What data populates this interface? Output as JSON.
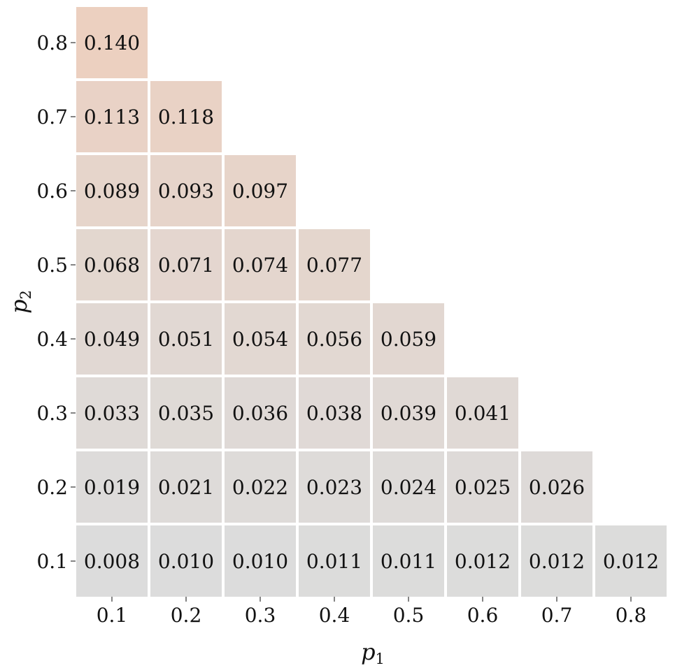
{
  "chart_data": {
    "type": "heatmap",
    "title": "",
    "xlabel": "p",
    "xlabel_subscript": "1",
    "ylabel": "p",
    "ylabel_subscript": "2",
    "x_categories": [
      "0.1",
      "0.2",
      "0.3",
      "0.4",
      "0.5",
      "0.6",
      "0.7",
      "0.8"
    ],
    "y_categories": [
      "0.1",
      "0.2",
      "0.3",
      "0.4",
      "0.5",
      "0.6",
      "0.7",
      "0.8"
    ],
    "rows": [
      {
        "y": "0.8",
        "values": [
          0.14
        ]
      },
      {
        "y": "0.7",
        "values": [
          0.113,
          0.118
        ]
      },
      {
        "y": "0.6",
        "values": [
          0.089,
          0.093,
          0.097
        ]
      },
      {
        "y": "0.5",
        "values": [
          0.068,
          0.071,
          0.074,
          0.077
        ]
      },
      {
        "y": "0.4",
        "values": [
          0.049,
          0.051,
          0.054,
          0.056,
          0.059
        ]
      },
      {
        "y": "0.3",
        "values": [
          0.033,
          0.035,
          0.036,
          0.038,
          0.039,
          0.041
        ]
      },
      {
        "y": "0.2",
        "values": [
          0.019,
          0.021,
          0.022,
          0.023,
          0.024,
          0.025,
          0.026
        ]
      },
      {
        "y": "0.1",
        "values": [
          0.008,
          0.01,
          0.01,
          0.011,
          0.011,
          0.012,
          0.012,
          0.012
        ]
      }
    ],
    "value_format_decimals": 3,
    "color_low": "#dcdcdc",
    "color_high": "#ecd0c0",
    "value_range": [
      0.008,
      0.14
    ],
    "grid": false,
    "legend": "none"
  }
}
